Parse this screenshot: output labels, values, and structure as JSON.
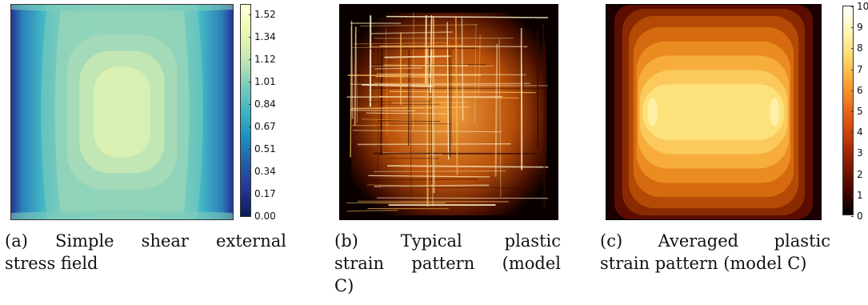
{
  "figures": [
    {
      "id": "a",
      "caption_lines": [
        [
          "(a)",
          "Simple",
          "shear",
          "external"
        ],
        [
          "stress field"
        ]
      ],
      "colorbar": {
        "colormap": "YlGnBu",
        "ticks": [
          "1.52",
          "1.34",
          "1.12",
          "1.01",
          "0.84",
          "0.67",
          "0.51",
          "0.34",
          "0.17",
          "0.00"
        ]
      }
    },
    {
      "id": "b",
      "caption_lines": [
        [
          "(b)",
          "Typical",
          "plastic"
        ],
        [
          "strain",
          "pattern",
          "(model"
        ],
        [
          "C)"
        ]
      ]
    },
    {
      "id": "c",
      "caption_lines": [
        [
          "(c)",
          "Averaged",
          "plastic"
        ],
        [
          "strain pattern (model C)"
        ]
      ],
      "colorbar": {
        "colormap": "afmhot",
        "ticks": [
          "10",
          "9",
          "8",
          "7",
          "6",
          "5",
          "4",
          "3",
          "2",
          "1",
          "0"
        ]
      }
    }
  ],
  "colors": {
    "ylgnbu_low": "#1d2f85",
    "ylgnbu_mid": "#7fcdbb",
    "ylgnbu_high": "#ffffd9",
    "afmhot_low": "#000000",
    "afmhot_mid": "#d95f0e",
    "afmhot_high": "#fff7c0"
  }
}
